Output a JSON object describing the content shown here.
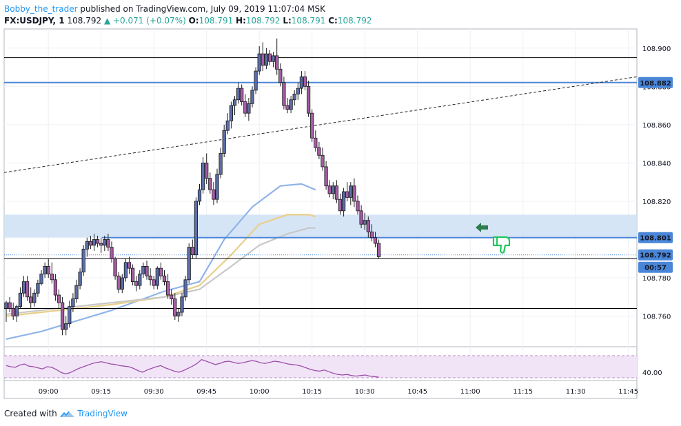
{
  "header": {
    "username": "Bobby_the_trader",
    "published": "published on TradingView.com, July 09, 2019 11:07:04 MSK",
    "symbol": "FX:USDJPY, 1",
    "last": "108.792",
    "change": "+0.071 (+0.07%)",
    "open_label": "O:",
    "open": "108.791",
    "high_label": "H:",
    "high": "108.792",
    "low_label": "L:",
    "low": "108.791",
    "close_label": "C:",
    "close": "108.792"
  },
  "footer": {
    "created_with": "Created with",
    "brand": "TradingView"
  },
  "colors": {
    "candle_bull": "#5b6ea8",
    "candle_bear": "#a65ca5",
    "wick": "#1a1a1a",
    "ma_blue": "#90b4e8",
    "ma_yellow": "#e8cf8a",
    "ma_grey": "#c8c8c8",
    "hline": "#000000",
    "blue_line": "#4a86d8",
    "zone": "#cfe0f5",
    "rsi_bg": "#f1e4f7",
    "rsi_line": "#9c4ea8",
    "arrow": "#2e7d4f",
    "thumb": "#22c55e"
  },
  "chart_data": {
    "type": "candlestick",
    "symbol": "USDJPY",
    "timeframe": "1",
    "y_ticks": [
      "108.900",
      "108.880",
      "108.860",
      "108.840",
      "108.820",
      "108.780",
      "108.760"
    ],
    "ylim": [
      108.744,
      108.91
    ],
    "x_ticks": [
      "09:00",
      "09:15",
      "09:30",
      "09:45",
      "10:00",
      "10:15",
      "10:30",
      "10:45",
      "11:00",
      "11:15",
      "11:30",
      "11:45"
    ],
    "price_labels": [
      {
        "value": 108.882,
        "text": "108.882",
        "color": "#4a86d8"
      },
      {
        "value": 108.801,
        "text": "108.801",
        "color": "#4a86d8"
      },
      {
        "value": 108.792,
        "text": "108.792",
        "color": "#4a86d8"
      }
    ],
    "countdown": "00:57",
    "rsi": {
      "tick": "40.00",
      "upper": 70,
      "lower": 30,
      "ylim": [
        25,
        80
      ]
    },
    "horizontal_lines": [
      108.895,
      108.79,
      108.764
    ],
    "blue_lines": [
      108.882,
      108.801
    ],
    "zone": [
      108.801,
      108.813
    ],
    "trendline": [
      {
        "x": "08:48",
        "y": 108.835
      },
      {
        "x": "11:54",
        "y": 108.885
      }
    ],
    "candles": [
      {
        "t": "08:48",
        "o": 108.764,
        "h": 108.768,
        "l": 108.757,
        "c": 108.767
      },
      {
        "t": "08:49",
        "o": 108.767,
        "h": 108.77,
        "l": 108.762,
        "c": 108.764
      },
      {
        "t": "08:50",
        "o": 108.764,
        "h": 108.767,
        "l": 108.758,
        "c": 108.76
      },
      {
        "t": "08:51",
        "o": 108.76,
        "h": 108.766,
        "l": 108.757,
        "c": 108.765
      },
      {
        "t": "08:52",
        "o": 108.765,
        "h": 108.775,
        "l": 108.764,
        "c": 108.772
      },
      {
        "t": "08:53",
        "o": 108.772,
        "h": 108.781,
        "l": 108.77,
        "c": 108.778
      },
      {
        "t": "08:54",
        "o": 108.778,
        "h": 108.781,
        "l": 108.768,
        "c": 108.77
      },
      {
        "t": "08:55",
        "o": 108.77,
        "h": 108.775,
        "l": 108.764,
        "c": 108.767
      },
      {
        "t": "08:56",
        "o": 108.767,
        "h": 108.774,
        "l": 108.765,
        "c": 108.772
      },
      {
        "t": "08:57",
        "o": 108.772,
        "h": 108.779,
        "l": 108.77,
        "c": 108.777
      },
      {
        "t": "08:58",
        "o": 108.777,
        "h": 108.784,
        "l": 108.776,
        "c": 108.782
      },
      {
        "t": "08:59",
        "o": 108.782,
        "h": 108.788,
        "l": 108.78,
        "c": 108.786
      },
      {
        "t": "09:00",
        "o": 108.786,
        "h": 108.79,
        "l": 108.78,
        "c": 108.782
      },
      {
        "t": "09:01",
        "o": 108.782,
        "h": 108.788,
        "l": 108.777,
        "c": 108.779
      },
      {
        "t": "09:02",
        "o": 108.779,
        "h": 108.782,
        "l": 108.768,
        "c": 108.771
      },
      {
        "t": "09:03",
        "o": 108.771,
        "h": 108.774,
        "l": 108.764,
        "c": 108.767
      },
      {
        "t": "09:04",
        "o": 108.767,
        "h": 108.77,
        "l": 108.75,
        "c": 108.753
      },
      {
        "t": "09:05",
        "o": 108.753,
        "h": 108.76,
        "l": 108.75,
        "c": 108.756
      },
      {
        "t": "09:06",
        "o": 108.756,
        "h": 108.768,
        "l": 108.754,
        "c": 108.765
      },
      {
        "t": "09:07",
        "o": 108.765,
        "h": 108.772,
        "l": 108.762,
        "c": 108.769
      },
      {
        "t": "09:08",
        "o": 108.769,
        "h": 108.779,
        "l": 108.767,
        "c": 108.776
      },
      {
        "t": "09:09",
        "o": 108.776,
        "h": 108.785,
        "l": 108.774,
        "c": 108.783
      },
      {
        "t": "09:10",
        "o": 108.783,
        "h": 108.797,
        "l": 108.781,
        "c": 108.795
      },
      {
        "t": "09:11",
        "o": 108.795,
        "h": 108.801,
        "l": 108.791,
        "c": 108.799
      },
      {
        "t": "09:12",
        "o": 108.799,
        "h": 108.802,
        "l": 108.795,
        "c": 108.797
      },
      {
        "t": "09:13",
        "o": 108.797,
        "h": 108.803,
        "l": 108.794,
        "c": 108.8
      },
      {
        "t": "09:14",
        "o": 108.8,
        "h": 108.802,
        "l": 108.796,
        "c": 108.798
      },
      {
        "t": "09:15",
        "o": 108.798,
        "h": 108.801,
        "l": 108.793,
        "c": 108.797
      },
      {
        "t": "09:16",
        "o": 108.797,
        "h": 108.802,
        "l": 108.794,
        "c": 108.8
      },
      {
        "t": "09:17",
        "o": 108.8,
        "h": 108.803,
        "l": 108.794,
        "c": 108.796
      },
      {
        "t": "09:18",
        "o": 108.796,
        "h": 108.799,
        "l": 108.788,
        "c": 108.79
      },
      {
        "t": "09:19",
        "o": 108.79,
        "h": 108.791,
        "l": 108.779,
        "c": 108.781
      },
      {
        "t": "09:20",
        "o": 108.781,
        "h": 108.783,
        "l": 108.772,
        "c": 108.774
      },
      {
        "t": "09:21",
        "o": 108.774,
        "h": 108.782,
        "l": 108.772,
        "c": 108.78
      },
      {
        "t": "09:22",
        "o": 108.78,
        "h": 108.79,
        "l": 108.778,
        "c": 108.788
      },
      {
        "t": "09:23",
        "o": 108.788,
        "h": 108.791,
        "l": 108.782,
        "c": 108.785
      },
      {
        "t": "09:24",
        "o": 108.785,
        "h": 108.787,
        "l": 108.776,
        "c": 108.778
      },
      {
        "t": "09:25",
        "o": 108.778,
        "h": 108.781,
        "l": 108.773,
        "c": 108.776
      },
      {
        "t": "09:26",
        "o": 108.776,
        "h": 108.784,
        "l": 108.774,
        "c": 108.782
      },
      {
        "t": "09:27",
        "o": 108.782,
        "h": 108.788,
        "l": 108.78,
        "c": 108.786
      },
      {
        "t": "09:28",
        "o": 108.786,
        "h": 108.789,
        "l": 108.779,
        "c": 108.781
      },
      {
        "t": "09:29",
        "o": 108.781,
        "h": 108.785,
        "l": 108.776,
        "c": 108.779
      },
      {
        "t": "09:30",
        "o": 108.779,
        "h": 108.781,
        "l": 108.774,
        "c": 108.776
      },
      {
        "t": "09:31",
        "o": 108.776,
        "h": 108.786,
        "l": 108.774,
        "c": 108.785
      },
      {
        "t": "09:32",
        "o": 108.785,
        "h": 108.788,
        "l": 108.779,
        "c": 108.781
      },
      {
        "t": "09:33",
        "o": 108.781,
        "h": 108.784,
        "l": 108.776,
        "c": 108.778
      },
      {
        "t": "09:34",
        "o": 108.778,
        "h": 108.782,
        "l": 108.769,
        "c": 108.771
      },
      {
        "t": "09:35",
        "o": 108.771,
        "h": 108.774,
        "l": 108.766,
        "c": 108.769
      },
      {
        "t": "09:36",
        "o": 108.769,
        "h": 108.772,
        "l": 108.758,
        "c": 108.76
      },
      {
        "t": "09:37",
        "o": 108.76,
        "h": 108.764,
        "l": 108.757,
        "c": 108.762
      },
      {
        "t": "09:38",
        "o": 108.762,
        "h": 108.772,
        "l": 108.76,
        "c": 108.77
      },
      {
        "t": "09:39",
        "o": 108.77,
        "h": 108.781,
        "l": 108.768,
        "c": 108.779
      },
      {
        "t": "09:40",
        "o": 108.779,
        "h": 108.798,
        "l": 108.777,
        "c": 108.796
      },
      {
        "t": "09:41",
        "o": 108.796,
        "h": 108.8,
        "l": 108.79,
        "c": 108.792
      },
      {
        "t": "09:42",
        "o": 108.792,
        "h": 108.822,
        "l": 108.79,
        "c": 108.82
      },
      {
        "t": "09:43",
        "o": 108.82,
        "h": 108.829,
        "l": 108.818,
        "c": 108.826
      },
      {
        "t": "09:44",
        "o": 108.826,
        "h": 108.843,
        "l": 108.824,
        "c": 108.84
      },
      {
        "t": "09:45",
        "o": 108.84,
        "h": 108.845,
        "l": 108.829,
        "c": 108.832
      },
      {
        "t": "09:46",
        "o": 108.832,
        "h": 108.835,
        "l": 108.824,
        "c": 108.826
      },
      {
        "t": "09:47",
        "o": 108.826,
        "h": 108.83,
        "l": 108.818,
        "c": 108.821
      },
      {
        "t": "09:48",
        "o": 108.821,
        "h": 108.837,
        "l": 108.819,
        "c": 108.834
      },
      {
        "t": "09:49",
        "o": 108.834,
        "h": 108.848,
        "l": 108.832,
        "c": 108.845
      },
      {
        "t": "09:50",
        "o": 108.845,
        "h": 108.86,
        "l": 108.843,
        "c": 108.857
      },
      {
        "t": "09:51",
        "o": 108.857,
        "h": 108.866,
        "l": 108.855,
        "c": 108.862
      },
      {
        "t": "09:52",
        "o": 108.862,
        "h": 108.872,
        "l": 108.858,
        "c": 108.87
      },
      {
        "t": "09:53",
        "o": 108.87,
        "h": 108.875,
        "l": 108.865,
        "c": 108.873
      },
      {
        "t": "09:54",
        "o": 108.873,
        "h": 108.882,
        "l": 108.871,
        "c": 108.879
      },
      {
        "t": "09:55",
        "o": 108.879,
        "h": 108.881,
        "l": 108.87,
        "c": 108.872
      },
      {
        "t": "09:56",
        "o": 108.872,
        "h": 108.876,
        "l": 108.864,
        "c": 108.866
      },
      {
        "t": "09:57",
        "o": 108.866,
        "h": 108.874,
        "l": 108.862,
        "c": 108.871
      },
      {
        "t": "09:58",
        "o": 108.871,
        "h": 108.88,
        "l": 108.869,
        "c": 108.878
      },
      {
        "t": "09:59",
        "o": 108.878,
        "h": 108.89,
        "l": 108.876,
        "c": 108.888
      },
      {
        "t": "10:00",
        "o": 108.888,
        "h": 108.901,
        "l": 108.886,
        "c": 108.897
      },
      {
        "t": "10:01",
        "o": 108.897,
        "h": 108.903,
        "l": 108.888,
        "c": 108.891
      },
      {
        "t": "10:02",
        "o": 108.891,
        "h": 108.9,
        "l": 108.889,
        "c": 108.897
      },
      {
        "t": "10:03",
        "o": 108.897,
        "h": 108.899,
        "l": 108.891,
        "c": 108.893
      },
      {
        "t": "10:04",
        "o": 108.893,
        "h": 108.898,
        "l": 108.89,
        "c": 108.896
      },
      {
        "t": "10:05",
        "o": 108.896,
        "h": 108.905,
        "l": 108.886,
        "c": 108.889
      },
      {
        "t": "10:06",
        "o": 108.889,
        "h": 108.892,
        "l": 108.88,
        "c": 108.882
      },
      {
        "t": "10:07",
        "o": 108.882,
        "h": 108.885,
        "l": 108.868,
        "c": 108.87
      },
      {
        "t": "10:08",
        "o": 108.87,
        "h": 108.874,
        "l": 108.866,
        "c": 108.868
      },
      {
        "t": "10:09",
        "o": 108.868,
        "h": 108.875,
        "l": 108.866,
        "c": 108.873
      },
      {
        "t": "10:10",
        "o": 108.873,
        "h": 108.878,
        "l": 108.87,
        "c": 108.876
      },
      {
        "t": "10:11",
        "o": 108.876,
        "h": 108.882,
        "l": 108.873,
        "c": 108.879
      },
      {
        "t": "10:12",
        "o": 108.879,
        "h": 108.888,
        "l": 108.876,
        "c": 108.885
      },
      {
        "t": "10:13",
        "o": 108.885,
        "h": 108.888,
        "l": 108.878,
        "c": 108.88
      },
      {
        "t": "10:14",
        "o": 108.88,
        "h": 108.883,
        "l": 108.864,
        "c": 108.866
      },
      {
        "t": "10:15",
        "o": 108.866,
        "h": 108.868,
        "l": 108.851,
        "c": 108.853
      },
      {
        "t": "10:16",
        "o": 108.853,
        "h": 108.857,
        "l": 108.846,
        "c": 108.848
      },
      {
        "t": "10:17",
        "o": 108.848,
        "h": 108.851,
        "l": 108.842,
        "c": 108.844
      },
      {
        "t": "10:18",
        "o": 108.844,
        "h": 108.848,
        "l": 108.836,
        "c": 108.838
      },
      {
        "t": "10:19",
        "o": 108.838,
        "h": 108.841,
        "l": 108.826,
        "c": 108.828
      },
      {
        "t": "10:20",
        "o": 108.828,
        "h": 108.831,
        "l": 108.822,
        "c": 108.824
      },
      {
        "t": "10:21",
        "o": 108.824,
        "h": 108.83,
        "l": 108.821,
        "c": 108.828
      },
      {
        "t": "10:22",
        "o": 108.828,
        "h": 108.831,
        "l": 108.819,
        "c": 108.821
      },
      {
        "t": "10:23",
        "o": 108.821,
        "h": 108.824,
        "l": 108.813,
        "c": 108.815
      },
      {
        "t": "10:24",
        "o": 108.815,
        "h": 108.827,
        "l": 108.812,
        "c": 108.825
      },
      {
        "t": "10:25",
        "o": 108.825,
        "h": 108.83,
        "l": 108.82,
        "c": 108.822
      },
      {
        "t": "10:26",
        "o": 108.822,
        "h": 108.83,
        "l": 108.818,
        "c": 108.828
      },
      {
        "t": "10:27",
        "o": 108.828,
        "h": 108.832,
        "l": 108.817,
        "c": 108.82
      },
      {
        "t": "10:28",
        "o": 108.82,
        "h": 108.823,
        "l": 108.813,
        "c": 108.815
      },
      {
        "t": "10:29",
        "o": 108.815,
        "h": 108.818,
        "l": 108.806,
        "c": 108.808
      },
      {
        "t": "10:30",
        "o": 108.808,
        "h": 108.814,
        "l": 108.805,
        "c": 108.81
      },
      {
        "t": "10:31",
        "o": 108.81,
        "h": 108.812,
        "l": 108.801,
        "c": 108.804
      },
      {
        "t": "10:32",
        "o": 108.804,
        "h": 108.808,
        "l": 108.799,
        "c": 108.801
      },
      {
        "t": "10:33",
        "o": 108.801,
        "h": 108.804,
        "l": 108.796,
        "c": 108.798
      },
      {
        "t": "10:34",
        "o": 108.798,
        "h": 108.8,
        "l": 108.79,
        "c": 108.791
      }
    ],
    "moving_averages": [
      {
        "color": "#90b4e8",
        "points": [
          [
            0,
            108.748
          ],
          [
            10,
            108.752
          ],
          [
            30,
            108.763
          ],
          [
            45,
            108.773
          ],
          [
            55,
            108.778
          ],
          [
            62,
            108.8
          ],
          [
            70,
            108.817
          ],
          [
            78,
            108.828
          ],
          [
            84,
            108.829
          ],
          [
            88,
            108.826
          ]
        ]
      },
      {
        "color": "#e8cf8a",
        "points": [
          [
            0,
            108.76
          ],
          [
            10,
            108.762
          ],
          [
            30,
            108.766
          ],
          [
            45,
            108.77
          ],
          [
            55,
            108.776
          ],
          [
            64,
            108.792
          ],
          [
            72,
            108.808
          ],
          [
            80,
            108.813
          ],
          [
            86,
            108.813
          ],
          [
            88,
            108.812
          ]
        ]
      },
      {
        "color": "#c8c8c8",
        "points": [
          [
            0,
            108.761
          ],
          [
            10,
            108.763
          ],
          [
            30,
            108.767
          ],
          [
            45,
            108.77
          ],
          [
            55,
            108.774
          ],
          [
            64,
            108.786
          ],
          [
            72,
            108.797
          ],
          [
            80,
            108.803
          ],
          [
            86,
            108.806
          ],
          [
            88,
            108.806
          ]
        ]
      }
    ],
    "rsi_values": [
      52,
      50,
      49,
      53,
      55,
      51,
      50,
      48,
      46,
      50,
      49,
      45,
      40,
      37,
      39,
      43,
      47,
      50,
      53,
      56,
      58,
      59,
      57,
      55,
      54,
      52,
      51,
      50,
      47,
      43,
      40,
      44,
      47,
      50,
      52,
      48,
      45,
      42,
      40,
      43,
      47,
      51,
      56,
      63,
      60,
      57,
      54,
      56,
      59,
      60,
      58,
      56,
      57,
      59,
      61,
      60,
      57,
      56,
      58,
      60,
      59,
      57,
      55,
      54,
      53,
      51,
      48,
      45,
      43,
      42,
      44,
      41,
      38,
      36,
      35,
      36,
      34,
      33,
      34,
      35,
      33,
      32,
      31
    ]
  }
}
